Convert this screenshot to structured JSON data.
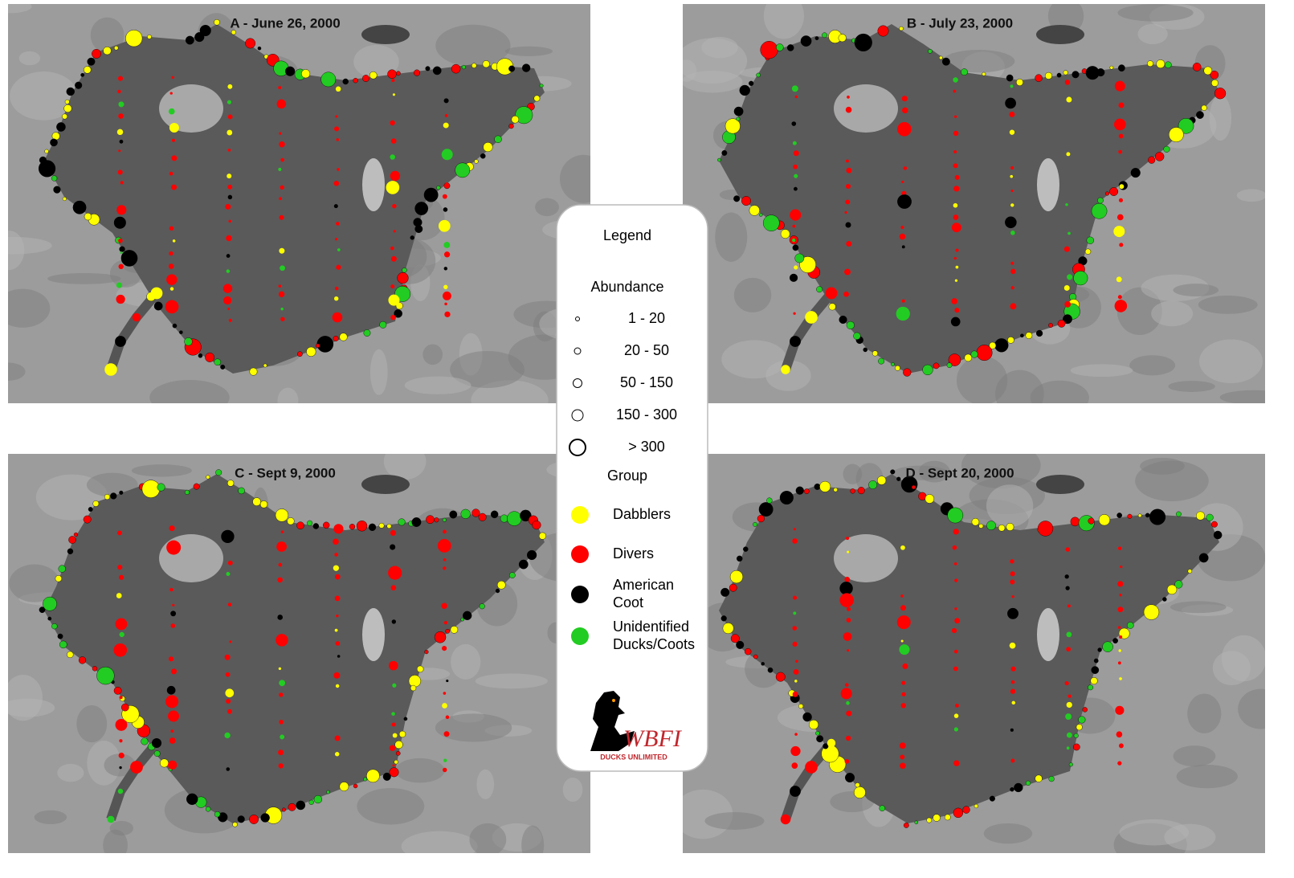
{
  "panels": [
    {
      "title": "A - June 26, 2000"
    },
    {
      "title": "B - July 23, 2000"
    },
    {
      "title": "C - Sept  9, 2000"
    },
    {
      "title": "D - Sept  20, 2000"
    }
  ],
  "legend": {
    "title": "Legend",
    "abundance_heading": "Abundance",
    "abundance": [
      "1 - 20",
      "20 - 50",
      "50 - 150",
      "150 - 300",
      "> 300"
    ],
    "group_heading": "Group",
    "groups": [
      {
        "label": "Dabblers",
        "color": "#ffff00"
      },
      {
        "label": "Divers",
        "color": "#ff0000"
      },
      {
        "label": "American\nCoot",
        "color": "#000000"
      },
      {
        "label": "Unidentified\nDucks/Coots",
        "color": "#22cc22"
      }
    ],
    "logo_text": "WBFI",
    "logo_subtext": "DUCKS UNLIMITED"
  }
}
